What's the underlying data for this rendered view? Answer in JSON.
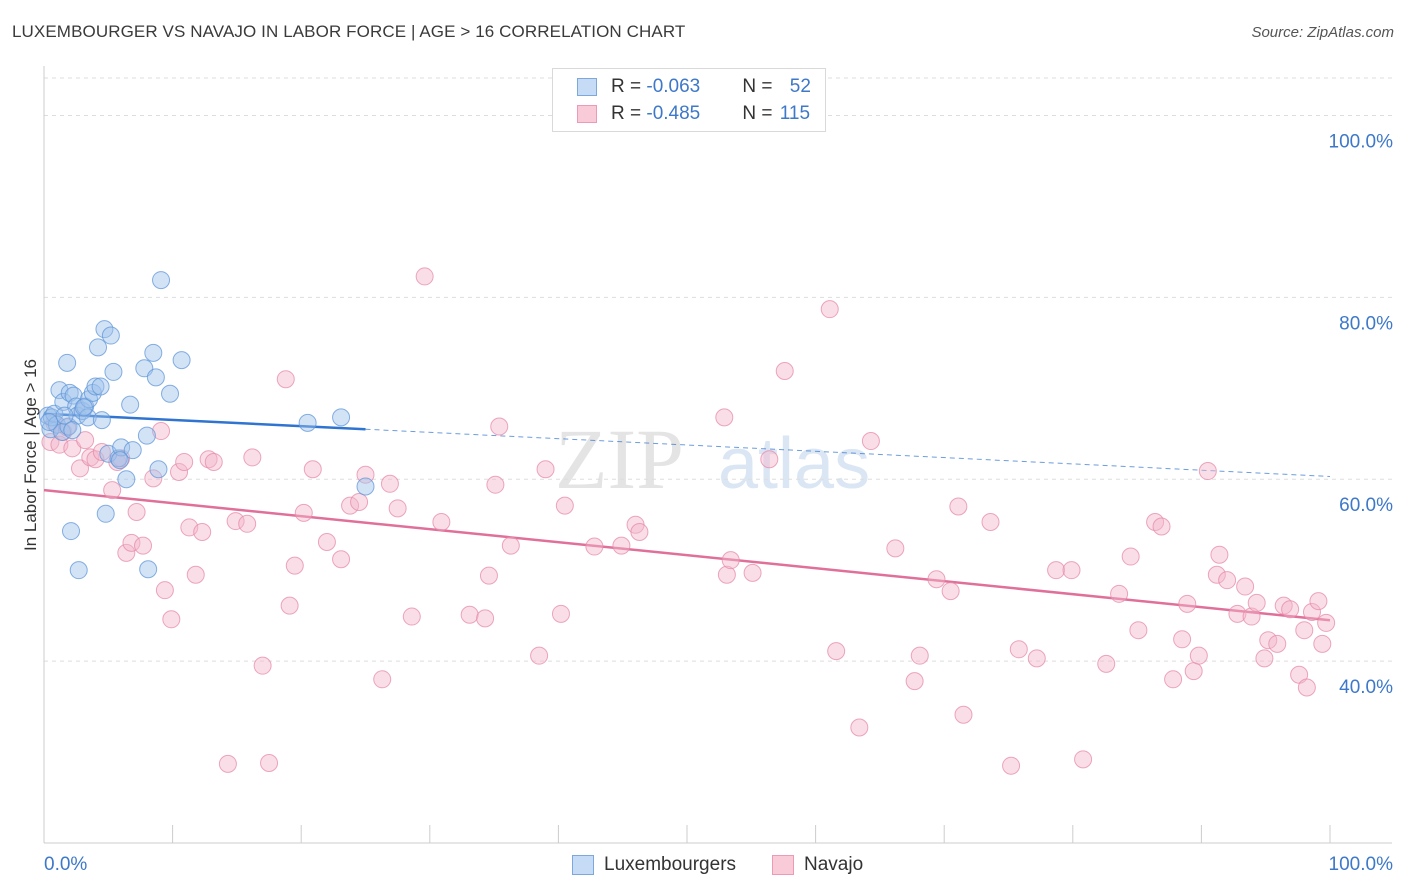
{
  "title": "LUXEMBOURGER VS NAVAJO IN LABOR FORCE | AGE > 16 CORRELATION CHART",
  "source": "Source: ZipAtlas.com",
  "watermark": {
    "zip": "ZIP",
    "atlas": "atlas"
  },
  "legend": {
    "lux": {
      "r_label": "R = ",
      "r_value": "-0.063",
      "n_label": "N = ",
      "n_value": "52"
    },
    "nav": {
      "r_label": "R = ",
      "r_value": "-0.485",
      "n_label": "N = ",
      "n_value": "115"
    }
  },
  "bottom_legend": {
    "lux": "Luxembourgers",
    "nav": "Navajo"
  },
  "colors": {
    "lux": "#9ec2ea",
    "lux_line": "#2f74d0",
    "nav": "#f3b6c9",
    "nav_line": "#e0709a",
    "tick_text": "#3d78c9"
  },
  "chart_data": {
    "type": "scatter",
    "xlabel": "",
    "ylabel": "In Labor Force | Age > 16",
    "xlim": [
      0,
      100
    ],
    "ylim": [
      20,
      105
    ],
    "x_tick_labels": [
      "0.0%",
      "100.0%"
    ],
    "y_ticks": [
      40,
      60,
      80,
      100
    ],
    "y_tick_labels": [
      "40.0%",
      "60.0%",
      "80.0%",
      "100.0%"
    ],
    "series": [
      {
        "name": "Luxembourgers",
        "trend": {
          "x0": 0,
          "y0": 67.2,
          "x1": 25,
          "y1": 65.5,
          "dashed_to_x": 100,
          "dashed_to_y": 60.3
        },
        "points": [
          [
            0.3,
            67
          ],
          [
            0.5,
            65.5
          ],
          [
            0.6,
            66.8
          ],
          [
            0.8,
            67.2
          ],
          [
            1,
            66
          ],
          [
            1.2,
            69.8
          ],
          [
            1.4,
            65.2
          ],
          [
            1.5,
            68.5
          ],
          [
            1.8,
            72.8
          ],
          [
            1.9,
            65.8
          ],
          [
            2,
            69.5
          ],
          [
            2.1,
            54.3
          ],
          [
            2.3,
            69.2
          ],
          [
            2.5,
            68
          ],
          [
            2.6,
            67
          ],
          [
            2.7,
            50
          ],
          [
            3,
            67.5
          ],
          [
            3.2,
            68
          ],
          [
            3.4,
            66.8
          ],
          [
            3.5,
            68.8
          ],
          [
            3.8,
            69.5
          ],
          [
            4,
            70.2
          ],
          [
            4.2,
            74.5
          ],
          [
            4.4,
            70.2
          ],
          [
            4.5,
            66.5
          ],
          [
            4.7,
            76.5
          ],
          [
            4.8,
            56.2
          ],
          [
            5,
            62.8
          ],
          [
            5.2,
            75.8
          ],
          [
            5.4,
            71.8
          ],
          [
            5.8,
            62.3
          ],
          [
            6,
            63.5
          ],
          [
            6.4,
            60
          ],
          [
            6.7,
            68.2
          ],
          [
            6.9,
            63.2
          ],
          [
            7.8,
            72.2
          ],
          [
            8,
            64.8
          ],
          [
            8.1,
            50.1
          ],
          [
            8.5,
            73.9
          ],
          [
            8.7,
            71.2
          ],
          [
            8.9,
            61.1
          ],
          [
            9.1,
            81.9
          ],
          [
            9.8,
            69.4
          ],
          [
            10.7,
            73.1
          ],
          [
            20.5,
            66.2
          ],
          [
            23.1,
            66.8
          ],
          [
            25,
            59.2
          ],
          [
            0.4,
            66.3
          ],
          [
            1.6,
            67
          ],
          [
            2.2,
            65.4
          ],
          [
            3.1,
            67.9
          ],
          [
            5.9,
            62.1
          ]
        ]
      },
      {
        "name": "Navajo",
        "trend": {
          "x0": 0,
          "y0": 58.8,
          "x1": 100,
          "y1": 44.5
        },
        "points": [
          [
            0.5,
            64.1
          ],
          [
            0.8,
            66.2
          ],
          [
            1.2,
            63.8
          ],
          [
            1.5,
            65.2
          ],
          [
            1.8,
            65.7
          ],
          [
            2.2,
            63.4
          ],
          [
            2.8,
            61.2
          ],
          [
            3.2,
            64.3
          ],
          [
            3.6,
            62.4
          ],
          [
            4,
            62.2
          ],
          [
            4.5,
            63
          ],
          [
            5.3,
            58.8
          ],
          [
            5.7,
            61.9
          ],
          [
            6,
            62.3
          ],
          [
            6.4,
            51.9
          ],
          [
            6.8,
            53
          ],
          [
            7.2,
            56.4
          ],
          [
            7.7,
            52.7
          ],
          [
            8.5,
            60.1
          ],
          [
            9.1,
            65.3
          ],
          [
            9.4,
            47.8
          ],
          [
            9.9,
            44.6
          ],
          [
            10.5,
            60.8
          ],
          [
            10.9,
            61.9
          ],
          [
            11.3,
            54.7
          ],
          [
            11.8,
            49.5
          ],
          [
            12.3,
            54.2
          ],
          [
            12.8,
            62.2
          ],
          [
            13.2,
            61.9
          ],
          [
            14.3,
            28.7
          ],
          [
            14.9,
            55.4
          ],
          [
            15.8,
            55.1
          ],
          [
            16.2,
            62.4
          ],
          [
            17,
            39.5
          ],
          [
            17.5,
            28.8
          ],
          [
            18.8,
            71
          ],
          [
            19.1,
            46.1
          ],
          [
            19.5,
            50.5
          ],
          [
            20.2,
            56.3
          ],
          [
            20.9,
            61.1
          ],
          [
            22,
            53.1
          ],
          [
            23.1,
            51.2
          ],
          [
            23.8,
            57.1
          ],
          [
            24.5,
            57.5
          ],
          [
            25,
            60.5
          ],
          [
            26.3,
            38
          ],
          [
            26.9,
            59.5
          ],
          [
            27.5,
            56.8
          ],
          [
            28.6,
            44.9
          ],
          [
            29.6,
            82.3
          ],
          [
            30.9,
            55.3
          ],
          [
            33.1,
            45.1
          ],
          [
            34.3,
            44.7
          ],
          [
            34.6,
            49.4
          ],
          [
            35.1,
            59.4
          ],
          [
            35.4,
            65.8
          ],
          [
            36.3,
            52.7
          ],
          [
            38.5,
            40.6
          ],
          [
            39,
            61.1
          ],
          [
            40.2,
            45.2
          ],
          [
            40.5,
            57.1
          ],
          [
            42.8,
            52.6
          ],
          [
            44.9,
            52.7
          ],
          [
            46,
            55
          ],
          [
            46.3,
            54.2
          ],
          [
            52.9,
            66.8
          ],
          [
            53.1,
            49.5
          ],
          [
            53.4,
            51.1
          ],
          [
            56.4,
            62.2
          ],
          [
            57.6,
            71.9
          ],
          [
            61.1,
            78.7
          ],
          [
            61.6,
            41.1
          ],
          [
            63.4,
            32.7
          ],
          [
            64.3,
            64.2
          ],
          [
            66.2,
            52.4
          ],
          [
            67.7,
            37.8
          ],
          [
            68.1,
            40.6
          ],
          [
            69.4,
            49
          ],
          [
            70.5,
            47.7
          ],
          [
            71.1,
            57
          ],
          [
            71.5,
            34.1
          ],
          [
            73.6,
            55.3
          ],
          [
            75.8,
            41.3
          ],
          [
            77.2,
            40.3
          ],
          [
            78.7,
            50
          ],
          [
            79.9,
            50
          ],
          [
            80.8,
            29.2
          ],
          [
            82.6,
            39.7
          ],
          [
            83.6,
            47.4
          ],
          [
            84.5,
            51.5
          ],
          [
            85.1,
            43.4
          ],
          [
            86.4,
            55.3
          ],
          [
            86.9,
            54.8
          ],
          [
            87.8,
            38
          ],
          [
            88.5,
            42.4
          ],
          [
            88.9,
            46.3
          ],
          [
            89.4,
            38.9
          ],
          [
            89.8,
            40.6
          ],
          [
            90.5,
            60.9
          ],
          [
            91.2,
            49.5
          ],
          [
            91.4,
            51.7
          ],
          [
            92,
            48.9
          ],
          [
            92.8,
            45.2
          ],
          [
            93.4,
            48.2
          ],
          [
            93.9,
            44.9
          ],
          [
            94.3,
            46.4
          ],
          [
            94.9,
            40.3
          ],
          [
            95.2,
            42.3
          ],
          [
            95.9,
            41.9
          ],
          [
            96.4,
            46.1
          ],
          [
            96.9,
            45.7
          ],
          [
            97.6,
            38.5
          ],
          [
            98,
            43.4
          ],
          [
            98.2,
            37.1
          ],
          [
            98.6,
            45.4
          ],
          [
            99.1,
            46.6
          ],
          [
            99.4,
            41.9
          ],
          [
            99.7,
            44.2
          ],
          [
            75.2,
            28.5
          ],
          [
            55.1,
            49.7
          ]
        ]
      }
    ]
  }
}
